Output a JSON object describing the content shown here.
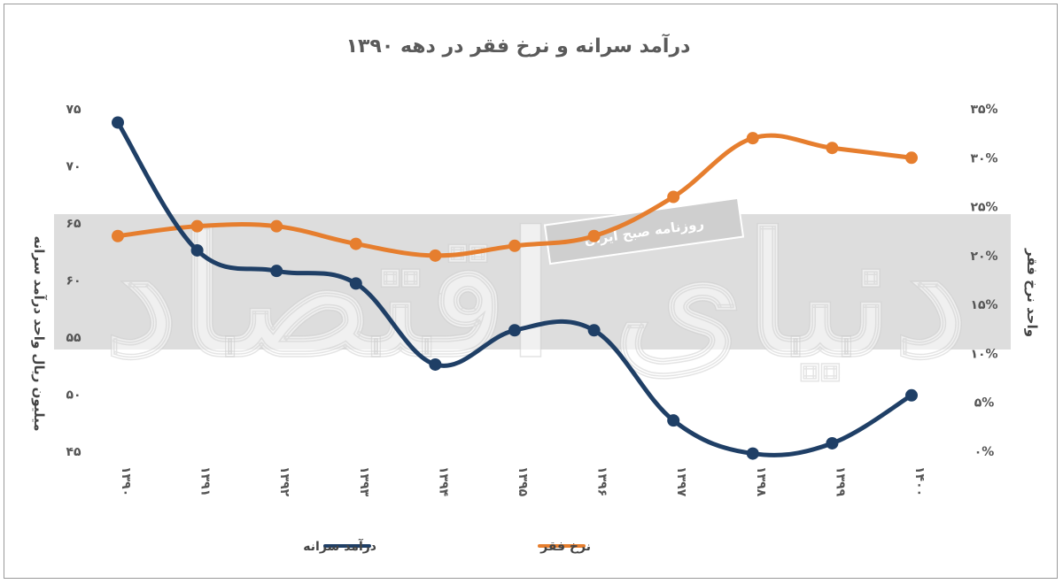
{
  "chart_data": {
    "type": "line",
    "title": "درآمد سرانه و نرخ فقر در دهه ۱۳۹۰",
    "categories": [
      "۱۳۹۰",
      "۱۳۹۱",
      "۱۳۹۲",
      "۱۳۹۳",
      "۱۳۹۴",
      "۱۳۹۵",
      "۱۳۹۶",
      "۱۳۹۷",
      "۱۳۹۸",
      "۱۳۹۹",
      "۱۴۰۰"
    ],
    "ylabel_left": "میلیون ریال  واحد درآمد سرانه",
    "ylabel_right": "واحد نرخ فقر",
    "y_left_ticks": [
      "۷۵",
      "۷۰",
      "۶۵",
      "۶۰",
      "۵۵",
      "۵۰",
      "۴۵"
    ],
    "y_left_lim": [
      45,
      75
    ],
    "y_right_ticks": [
      "۳۵%",
      "۳۰%",
      "۲۵%",
      "۲۰%",
      "۱۵%",
      "۱۰%",
      "۵%",
      "۰%"
    ],
    "y_right_lim": [
      0,
      35
    ],
    "grid": false,
    "legend_position": "bottom",
    "series": [
      {
        "name": "درآمد سرانه",
        "axis": "left",
        "color": "#1f3f66",
        "values": [
          73.8,
          62.6,
          60.8,
          59.7,
          52.6,
          55.6,
          55.6,
          47.7,
          44.8,
          45.7,
          49.9
        ]
      },
      {
        "name": "نرخ فقر",
        "axis": "right",
        "color": "#e67e2e",
        "values": [
          22.0,
          23.0,
          23.0,
          21.2,
          20.0,
          21.0,
          22.0,
          26.0,
          32.0,
          31.0,
          30.0
        ]
      }
    ],
    "watermark": {
      "banner_text": "روزنامه صبح ایران",
      "logo_text": "دنیای اقتصاد"
    }
  }
}
